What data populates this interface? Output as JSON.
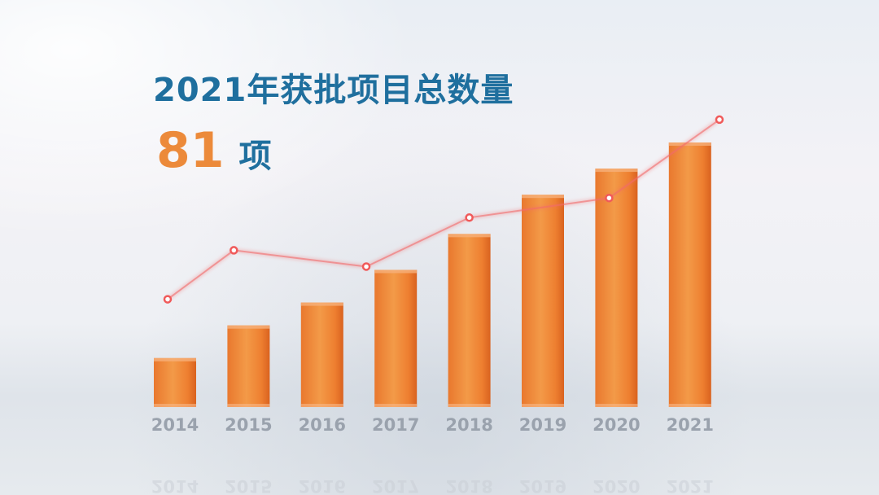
{
  "header": {
    "title": "2021年获批项目总数量",
    "total_value": "81",
    "total_unit": "项"
  },
  "chart_data": {
    "type": "bar",
    "categories": [
      "2014",
      "2015",
      "2016",
      "2017",
      "2018",
      "2019",
      "2020",
      "2021"
    ],
    "values": [
      15,
      25,
      32,
      42,
      53,
      65,
      73,
      81
    ],
    "bar_color": "#ec7a2a",
    "ylim": [
      0,
      90
    ],
    "grid": false,
    "trend_line": {
      "color": "#f26b6b",
      "x": [
        -0.1,
        0.8,
        2.6,
        4.0,
        5.9,
        7.4
      ],
      "values": [
        33,
        48,
        43,
        58,
        64,
        88
      ]
    }
  }
}
